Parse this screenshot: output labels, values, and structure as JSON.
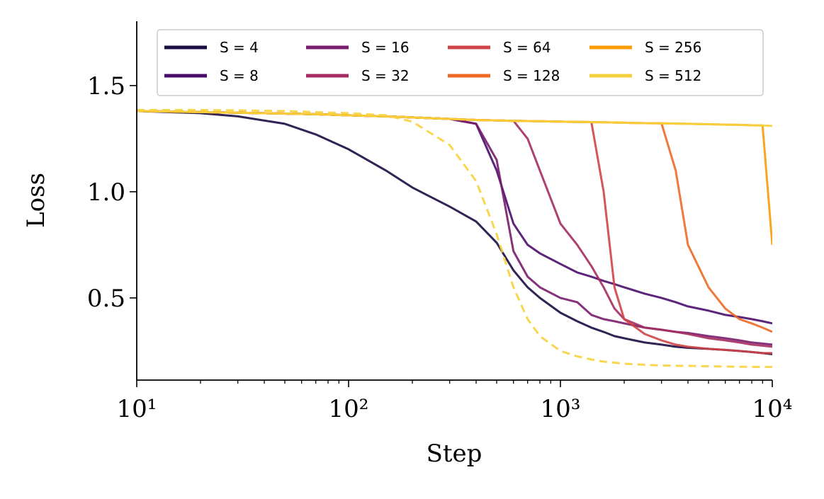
{
  "chart_data": {
    "type": "line",
    "x_label": "Step",
    "y_label": "Loss",
    "xscale": "log",
    "x": [
      10,
      20,
      30,
      50,
      70,
      100,
      150,
      200,
      300,
      400,
      500,
      600,
      700,
      800,
      1000,
      1200,
      1400,
      1600,
      1800,
      2000,
      2500,
      3000,
      3500,
      4000,
      5000,
      6000,
      7000,
      8000,
      9000,
      10000
    ],
    "xlim": [
      10,
      10000
    ],
    "xticks": [
      {
        "value": 10,
        "label": "10¹"
      },
      {
        "value": 100,
        "label": "10²"
      },
      {
        "value": 1000,
        "label": "10³"
      },
      {
        "value": 10000,
        "label": "10⁴"
      }
    ],
    "ylim": [
      0.113,
      1.803
    ],
    "yticks": [
      {
        "value": 0.5,
        "label": "0.5"
      },
      {
        "value": 1.0,
        "label": "1.0"
      },
      {
        "value": 1.5,
        "label": "1.5"
      }
    ],
    "grid": false,
    "legend": "upper right",
    "series": [
      {
        "name": "S = 4",
        "color": "#1b0c41",
        "values": [
          1.38,
          1.37,
          1.355,
          1.32,
          1.27,
          1.2,
          1.1,
          1.02,
          0.93,
          0.86,
          0.76,
          0.63,
          0.55,
          0.5,
          0.43,
          0.39,
          0.36,
          0.34,
          0.32,
          0.31,
          0.29,
          0.28,
          0.27,
          0.265,
          0.26,
          0.255,
          0.25,
          0.245,
          0.24,
          0.235
        ]
      },
      {
        "name": "S = 8",
        "color": "#4a0c6b",
        "values": [
          1.38,
          1.375,
          1.372,
          1.368,
          1.365,
          1.36,
          1.355,
          1.35,
          1.343,
          1.32,
          1.1,
          0.85,
          0.75,
          0.71,
          0.66,
          0.62,
          0.6,
          0.58,
          0.565,
          0.55,
          0.52,
          0.5,
          0.48,
          0.46,
          0.44,
          0.42,
          0.41,
          0.4,
          0.39,
          0.38
        ]
      },
      {
        "name": "S = 16",
        "color": "#781c6d",
        "values": [
          1.38,
          1.375,
          1.372,
          1.368,
          1.365,
          1.36,
          1.355,
          1.35,
          1.343,
          1.32,
          1.15,
          0.72,
          0.6,
          0.55,
          0.5,
          0.48,
          0.42,
          0.4,
          0.39,
          0.38,
          0.36,
          0.35,
          0.34,
          0.335,
          0.32,
          0.31,
          0.3,
          0.29,
          0.285,
          0.28
        ]
      },
      {
        "name": "S = 32",
        "color": "#a52c60",
        "values": [
          1.38,
          1.375,
          1.372,
          1.368,
          1.365,
          1.36,
          1.355,
          1.35,
          1.343,
          1.338,
          1.336,
          1.334,
          1.25,
          1.1,
          0.85,
          0.75,
          0.65,
          0.55,
          0.45,
          0.4,
          0.36,
          0.35,
          0.34,
          0.33,
          0.31,
          0.3,
          0.29,
          0.28,
          0.275,
          0.27
        ]
      },
      {
        "name": "S = 64",
        "color": "#cf4446",
        "values": [
          1.38,
          1.375,
          1.372,
          1.368,
          1.365,
          1.36,
          1.355,
          1.35,
          1.343,
          1.338,
          1.336,
          1.334,
          1.333,
          1.332,
          1.33,
          1.329,
          1.328,
          1.0,
          0.55,
          0.4,
          0.33,
          0.3,
          0.28,
          0.27,
          0.26,
          0.255,
          0.25,
          0.245,
          0.24,
          0.24
        ]
      },
      {
        "name": "S = 128",
        "color": "#ed6925",
        "values": [
          1.38,
          1.375,
          1.372,
          1.368,
          1.365,
          1.36,
          1.355,
          1.35,
          1.343,
          1.338,
          1.336,
          1.334,
          1.333,
          1.332,
          1.33,
          1.329,
          1.328,
          1.327,
          1.326,
          1.325,
          1.323,
          1.322,
          1.1,
          0.75,
          0.55,
          0.45,
          0.4,
          0.38,
          0.36,
          0.34
        ]
      },
      {
        "name": "S = 256",
        "color": "#fb9b06",
        "values": [
          1.38,
          1.375,
          1.372,
          1.368,
          1.365,
          1.36,
          1.355,
          1.35,
          1.343,
          1.338,
          1.336,
          1.334,
          1.333,
          1.332,
          1.33,
          1.329,
          1.328,
          1.327,
          1.326,
          1.325,
          1.323,
          1.322,
          1.321,
          1.32,
          1.318,
          1.316,
          1.315,
          1.313,
          1.312,
          0.75
        ]
      },
      {
        "name": "S = 512",
        "color": "#f7d13d",
        "values": [
          1.38,
          1.375,
          1.372,
          1.368,
          1.365,
          1.36,
          1.355,
          1.35,
          1.343,
          1.338,
          1.336,
          1.334,
          1.333,
          1.332,
          1.33,
          1.329,
          1.328,
          1.327,
          1.326,
          1.325,
          1.323,
          1.322,
          1.321,
          1.32,
          1.318,
          1.316,
          1.315,
          1.313,
          1.312,
          1.31
        ]
      },
      {
        "color": "#f7d13d",
        "dash": true,
        "values": [
          1.385,
          1.385,
          1.383,
          1.38,
          1.375,
          1.37,
          1.36,
          1.33,
          1.22,
          1.05,
          0.8,
          0.55,
          0.4,
          0.32,
          0.25,
          0.225,
          0.21,
          0.2,
          0.195,
          0.19,
          0.185,
          0.182,
          0.18,
          0.18,
          0.178,
          0.177,
          0.176,
          0.175,
          0.175,
          0.175
        ]
      }
    ]
  }
}
